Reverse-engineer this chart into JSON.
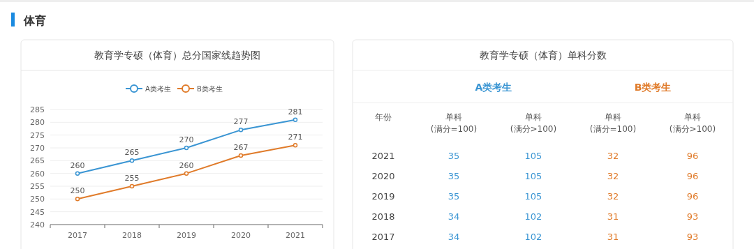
{
  "chart_data": [
    {
      "type": "line",
      "title": "教育学专硕（体育）总分国家线趋势图",
      "annotations": [
        "体育"
      ],
      "categories": [
        "2017",
        "2018",
        "2019",
        "2020",
        "2021"
      ],
      "series": [
        {
          "name": "A类考生",
          "color": "#3a95d3",
          "values": [
            260,
            265,
            270,
            277,
            281
          ]
        },
        {
          "name": "B类考生",
          "color": "#e07b2a",
          "values": [
            250,
            255,
            260,
            267,
            271
          ]
        }
      ],
      "ylim": [
        240,
        285
      ],
      "yticks": [
        240,
        245,
        250,
        255,
        260,
        265,
        270,
        275,
        280,
        285
      ],
      "grid": "y",
      "legend": "top",
      "marker": "circle",
      "data_labels": true
    },
    {
      "type": "heatmap",
      "title": "教育学专硕（体育）单科分数",
      "ylabel": "年份",
      "annotations": [
        "A类考生",
        "B类考生"
      ],
      "categories": [
        "单科\n(满分=100)",
        "单科\n(满分>100)",
        "单科\n(满分=100)",
        "单科\n(满分>100)"
      ],
      "colors": [
        "#3a95d3",
        "#3a95d3",
        "#e07b2a",
        "#e07b2a"
      ],
      "y_categories": [
        "2021",
        "2020",
        "2019",
        "2018",
        "2017"
      ],
      "cells": [
        [
          35,
          105,
          32,
          96
        ],
        [
          35,
          105,
          32,
          96
        ],
        [
          35,
          105,
          32,
          96
        ],
        [
          34,
          102,
          31,
          93
        ],
        [
          34,
          102,
          31,
          93
        ]
      ],
      "data_labels": true
    }
  ]
}
